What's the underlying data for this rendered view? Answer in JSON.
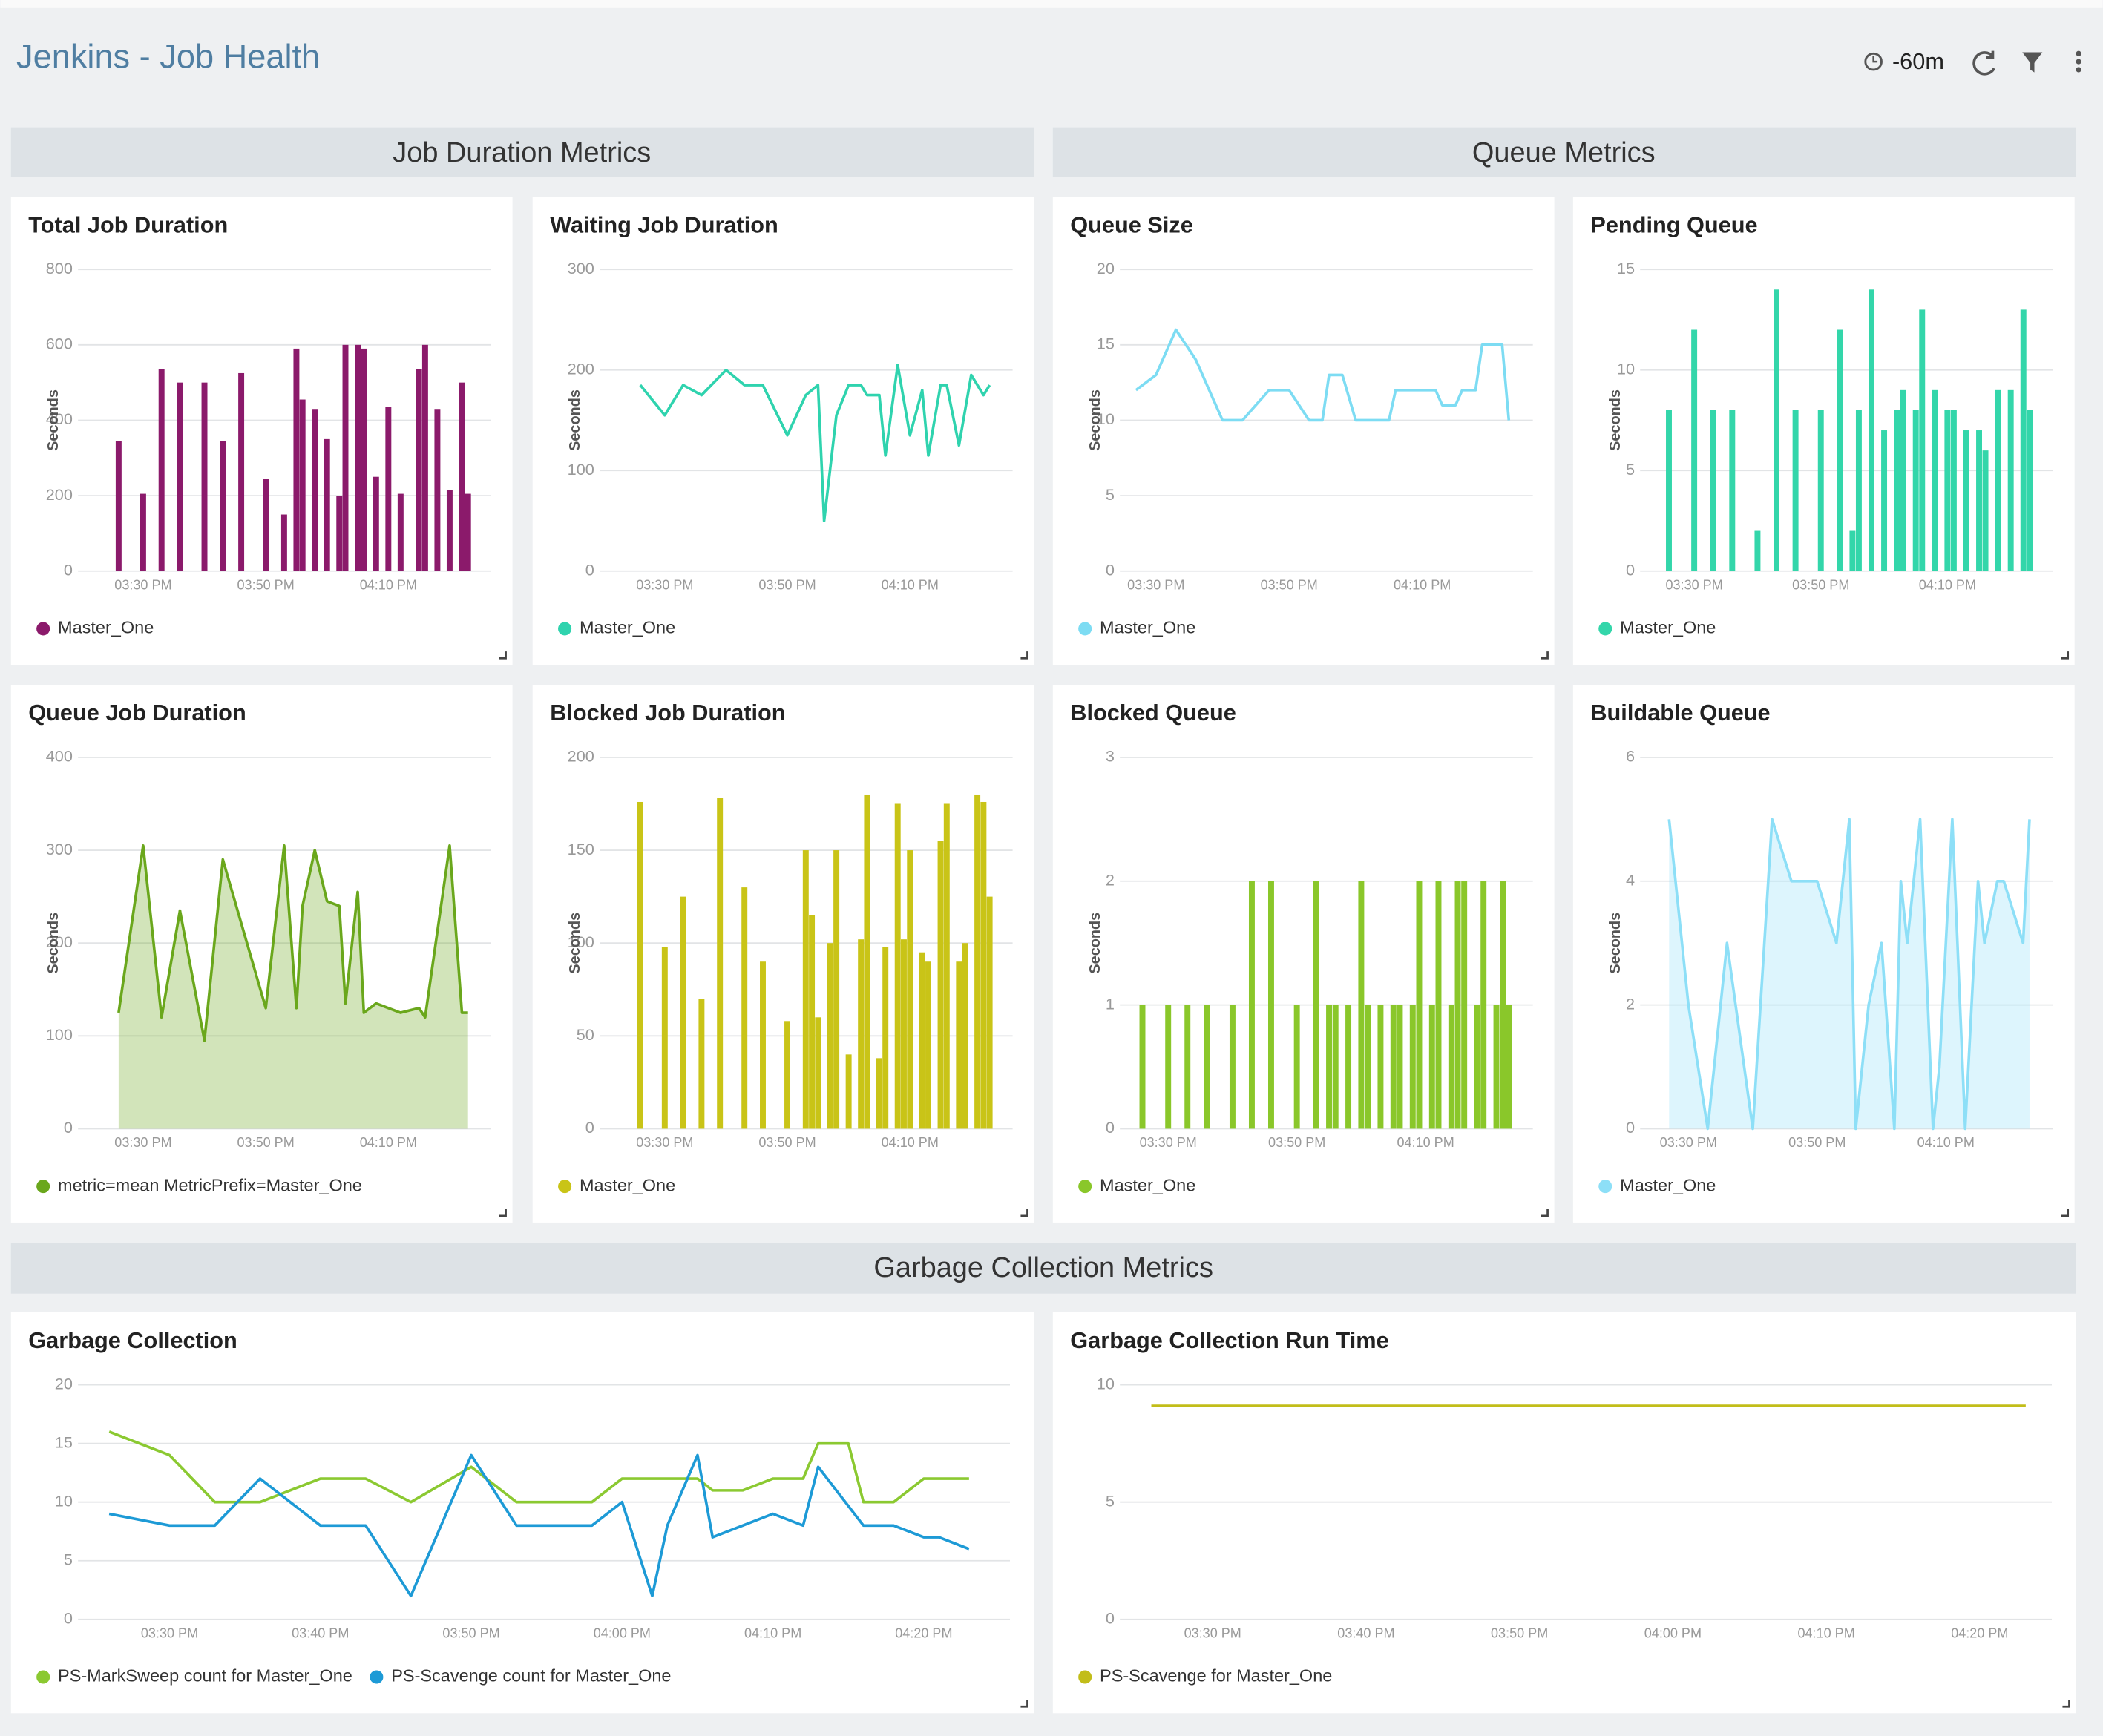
{
  "header": {
    "title": "Jenkins - Job Health",
    "time_range": "-60m"
  },
  "sections": [
    "Job Duration Metrics",
    "Queue Metrics",
    "Garbage Collection Metrics"
  ],
  "chart_data": [
    {
      "type": "bar",
      "title": "Total Job Duration",
      "y_label": "Seconds",
      "xlim": [
        "03:22 PM",
        "04:25 PM"
      ],
      "xticks": [
        "03:30 PM",
        "03:50 PM",
        "04:10 PM"
      ],
      "ylim": [
        0,
        800
      ],
      "yticks": [
        0,
        200,
        400,
        600,
        800
      ],
      "grid": true,
      "series": [
        {
          "name": "Master_One",
          "color": "#8b1a6b",
          "x": [
            "03:26 PM",
            "03:30 PM",
            "03:33 PM",
            "03:36 PM",
            "03:40 PM",
            "03:43 PM",
            "03:46 PM",
            "03:50 PM",
            "03:53 PM",
            "03:55 PM",
            "03:56 PM",
            "03:58 PM",
            "04:00 PM",
            "04:02 PM",
            "04:03 PM",
            "04:05 PM",
            "04:06 PM",
            "04:08 PM",
            "04:10 PM",
            "04:12 PM",
            "04:15 PM",
            "04:16 PM",
            "04:18 PM",
            "04:20 PM",
            "04:22 PM",
            "04:23 PM"
          ],
          "values": [
            345,
            205,
            535,
            500,
            500,
            345,
            525,
            245,
            150,
            590,
            455,
            430,
            350,
            200,
            600,
            600,
            590,
            250,
            435,
            205,
            535,
            600,
            430,
            215,
            500,
            205
          ]
        }
      ]
    },
    {
      "type": "line",
      "title": "Waiting Job Duration",
      "y_label": "Seconds",
      "xlim": [
        "03:22 PM",
        "04:25 PM"
      ],
      "xticks": [
        "03:30 PM",
        "03:50 PM",
        "04:10 PM"
      ],
      "ylim": [
        0,
        300
      ],
      "yticks": [
        0,
        100,
        200,
        300
      ],
      "grid": true,
      "series": [
        {
          "name": "Master_One",
          "color": "#2fd3ae",
          "x": [
            "03:26 PM",
            "03:30 PM",
            "03:33 PM",
            "03:36 PM",
            "03:40 PM",
            "03:43 PM",
            "03:46 PM",
            "03:50 PM",
            "03:53 PM",
            "03:55 PM",
            "03:56 PM",
            "03:58 PM",
            "04:00 PM",
            "04:02 PM",
            "04:03 PM",
            "04:05 PM",
            "04:06 PM",
            "04:08 PM",
            "04:10 PM",
            "04:12 PM",
            "04:13 PM",
            "04:15 PM",
            "04:16 PM",
            "04:18 PM",
            "04:20 PM",
            "04:22 PM",
            "04:23 PM"
          ],
          "values": [
            185,
            155,
            185,
            175,
            200,
            185,
            185,
            135,
            175,
            185,
            50,
            155,
            185,
            185,
            175,
            175,
            115,
            205,
            135,
            180,
            115,
            185,
            185,
            125,
            195,
            175,
            185
          ]
        }
      ]
    },
    {
      "type": "line",
      "title": "Queue Size",
      "y_label": "Seconds",
      "xlim": [
        "03:27 PM",
        "04:25 PM"
      ],
      "xticks": [
        "03:30 PM",
        "03:50 PM",
        "04:10 PM"
      ],
      "ylim": [
        0,
        20
      ],
      "yticks": [
        0,
        5,
        10,
        15,
        20
      ],
      "grid": true,
      "series": [
        {
          "name": "Master_One",
          "color": "#7ddcf3",
          "x": [
            "03:27 PM",
            "03:30 PM",
            "03:33 PM",
            "03:36 PM",
            "03:40 PM",
            "03:43 PM",
            "03:47 PM",
            "03:50 PM",
            "03:53 PM",
            "03:55 PM",
            "03:56 PM",
            "03:58 PM",
            "04:00 PM",
            "04:05 PM",
            "04:06 PM",
            "04:12 PM",
            "04:13 PM",
            "04:15 PM",
            "04:16 PM",
            "04:18 PM",
            "04:19 PM",
            "04:22 PM",
            "04:23 PM"
          ],
          "values": [
            12,
            13,
            16,
            14,
            10,
            10,
            12,
            12,
            10,
            10,
            13,
            13,
            10,
            10,
            12,
            12,
            11,
            11,
            12,
            12,
            15,
            15,
            10
          ]
        }
      ]
    },
    {
      "type": "bar",
      "title": "Pending Queue",
      "y_label": "Seconds",
      "xlim": [
        "03:24 PM",
        "04:25 PM"
      ],
      "xticks": [
        "03:30 PM",
        "03:50 PM",
        "04:10 PM"
      ],
      "ylim": [
        0,
        15
      ],
      "yticks": [
        0,
        5,
        10,
        15
      ],
      "grid": true,
      "series": [
        {
          "name": "Master_One",
          "color": "#33d6aa",
          "x": [
            "03:26 PM",
            "03:30 PM",
            "03:33 PM",
            "03:36 PM",
            "03:40 PM",
            "03:43 PM",
            "03:46 PM",
            "03:50 PM",
            "03:53 PM",
            "03:55 PM",
            "03:56 PM",
            "03:58 PM",
            "04:00 PM",
            "04:02 PM",
            "04:03 PM",
            "04:05 PM",
            "04:06 PM",
            "04:08 PM",
            "04:10 PM",
            "04:11 PM",
            "04:13 PM",
            "04:15 PM",
            "04:16 PM",
            "04:18 PM",
            "04:20 PM",
            "04:22 PM",
            "04:23 PM"
          ],
          "values": [
            8,
            12,
            8,
            8,
            2,
            14,
            8,
            8,
            12,
            2,
            8,
            14,
            7,
            8,
            9,
            8,
            13,
            9,
            8,
            8,
            7,
            7,
            6,
            9,
            9,
            13,
            8
          ]
        }
      ]
    },
    {
      "type": "area",
      "title": "Queue Job Duration",
      "y_label": "Seconds",
      "xlim": [
        "03:22 PM",
        "04:25 PM"
      ],
      "xticks": [
        "03:30 PM",
        "03:50 PM",
        "04:10 PM"
      ],
      "ylim": [
        0,
        400
      ],
      "yticks": [
        0,
        100,
        200,
        300,
        400
      ],
      "grid": true,
      "series": [
        {
          "name": "metric=mean MetricPrefix=Master_One",
          "color": "#6aa71c",
          "x": [
            "03:26 PM",
            "03:30 PM",
            "03:33 PM",
            "03:36 PM",
            "03:40 PM",
            "03:43 PM",
            "03:50 PM",
            "03:53 PM",
            "03:55 PM",
            "03:56 PM",
            "03:58 PM",
            "04:00 PM",
            "04:02 PM",
            "04:03 PM",
            "04:05 PM",
            "04:06 PM",
            "04:08 PM",
            "04:10 PM",
            "04:12 PM",
            "04:15 PM",
            "04:16 PM",
            "04:20 PM",
            "04:22 PM",
            "04:23 PM"
          ],
          "values": [
            125,
            305,
            120,
            235,
            95,
            290,
            130,
            305,
            130,
            240,
            300,
            245,
            240,
            135,
            255,
            125,
            135,
            130,
            125,
            130,
            120,
            305,
            125,
            125
          ]
        }
      ]
    },
    {
      "type": "bar",
      "title": "Blocked Job Duration",
      "y_label": "Seconds",
      "xlim": [
        "03:22 PM",
        "04:25 PM"
      ],
      "xticks": [
        "03:30 PM",
        "03:50 PM",
        "04:10 PM"
      ],
      "ylim": [
        0,
        200
      ],
      "yticks": [
        0,
        50,
        100,
        150,
        200
      ],
      "grid": true,
      "series": [
        {
          "name": "Master_One",
          "color": "#c9c417",
          "x": [
            "03:26 PM",
            "03:30 PM",
            "03:33 PM",
            "03:36 PM",
            "03:39 PM",
            "03:43 PM",
            "03:46 PM",
            "03:50 PM",
            "03:53 PM",
            "03:54 PM",
            "03:55 PM",
            "03:57 PM",
            "03:58 PM",
            "04:00 PM",
            "04:02 PM",
            "04:03 PM",
            "04:05 PM",
            "04:06 PM",
            "04:08 PM",
            "04:09 PM",
            "04:10 PM",
            "04:12 PM",
            "04:13 PM",
            "04:15 PM",
            "04:16 PM",
            "04:18 PM",
            "04:19 PM",
            "04:21 PM",
            "04:22 PM",
            "04:23 PM"
          ],
          "values": [
            176,
            98,
            125,
            70,
            178,
            130,
            90,
            58,
            150,
            115,
            60,
            100,
            150,
            40,
            102,
            180,
            38,
            98,
            175,
            102,
            150,
            95,
            90,
            155,
            175,
            90,
            100,
            180,
            176,
            125
          ]
        }
      ]
    },
    {
      "type": "bar",
      "title": "Blocked Queue",
      "y_label": "Seconds",
      "xlim": [
        "03:25 PM",
        "04:25 PM"
      ],
      "xticks": [
        "03:30 PM",
        "03:50 PM",
        "04:10 PM"
      ],
      "ylim": [
        0,
        3
      ],
      "yticks": [
        0,
        1,
        2,
        3
      ],
      "grid": true,
      "series": [
        {
          "name": "Master_One",
          "color": "#8ac72a",
          "x": [
            "03:26 PM",
            "03:30 PM",
            "03:33 PM",
            "03:36 PM",
            "03:40 PM",
            "03:43 PM",
            "03:46 PM",
            "03:50 PM",
            "03:53 PM",
            "03:55 PM",
            "03:56 PM",
            "03:58 PM",
            "04:00 PM",
            "04:01 PM",
            "04:03 PM",
            "04:05 PM",
            "04:06 PM",
            "04:08 PM",
            "04:09 PM",
            "04:11 PM",
            "04:12 PM",
            "04:14 PM",
            "04:15 PM",
            "04:16 PM",
            "04:18 PM",
            "04:19 PM",
            "04:21 PM",
            "04:22 PM",
            "04:23 PM"
          ],
          "values": [
            1,
            1,
            1,
            1,
            1,
            2,
            2,
            1,
            2,
            1,
            1,
            1,
            2,
            1,
            1,
            1,
            1,
            1,
            2,
            1,
            2,
            1,
            2,
            2,
            1,
            2,
            1,
            2,
            1
          ]
        }
      ]
    },
    {
      "type": "area",
      "title": "Buildable Queue",
      "y_label": "Seconds",
      "xlim": [
        "03:25 PM",
        "04:25 PM"
      ],
      "xticks": [
        "03:30 PM",
        "03:50 PM",
        "04:10 PM"
      ],
      "ylim": [
        0,
        6
      ],
      "yticks": [
        0,
        2,
        4,
        6
      ],
      "grid": true,
      "series": [
        {
          "name": "Master_One",
          "color": "#8ddff7",
          "x": [
            "03:27 PM",
            "03:30 PM",
            "03:33 PM",
            "03:36 PM",
            "03:40 PM",
            "03:43 PM",
            "03:46 PM",
            "03:50 PM",
            "03:53 PM",
            "03:55 PM",
            "03:56 PM",
            "03:58 PM",
            "04:00 PM",
            "04:02 PM",
            "04:03 PM",
            "04:04 PM",
            "04:06 PM",
            "04:08 PM",
            "04:09 PM",
            "04:11 PM",
            "04:13 PM",
            "04:15 PM",
            "04:16 PM",
            "04:18 PM",
            "04:19 PM",
            "04:22 PM",
            "04:23 PM"
          ],
          "values": [
            5,
            2,
            0,
            3,
            0,
            5,
            4,
            4,
            3,
            5,
            0,
            2,
            3,
            0,
            4,
            3,
            5,
            0,
            1,
            5,
            0,
            4,
            3,
            4,
            4,
            3,
            5
          ]
        }
      ]
    },
    {
      "type": "line",
      "title": "Garbage Collection",
      "xlim": [
        "03:25 PM",
        "04:25 PM"
      ],
      "xticks": [
        "03:30 PM",
        "03:40 PM",
        "03:50 PM",
        "04:00 PM",
        "04:10 PM",
        "04:20 PM"
      ],
      "ylim": [
        0,
        20
      ],
      "yticks": [
        0,
        5,
        10,
        15,
        20
      ],
      "grid": true,
      "series": [
        {
          "name": "PS-MarkSweep count for Master_One",
          "color": "#8bc931",
          "x": [
            "03:26 PM",
            "03:30 PM",
            "03:33 PM",
            "03:36 PM",
            "03:40 PM",
            "03:43 PM",
            "03:46 PM",
            "03:50 PM",
            "03:53 PM",
            "03:58 PM",
            "04:00 PM",
            "04:05 PM",
            "04:06 PM",
            "04:08 PM",
            "04:10 PM",
            "04:12 PM",
            "04:13 PM",
            "04:15 PM",
            "04:16 PM",
            "04:18 PM",
            "04:20 PM",
            "04:23 PM"
          ],
          "values": [
            16,
            14,
            10,
            10,
            12,
            12,
            10,
            13,
            10,
            10,
            12,
            12,
            11,
            11,
            12,
            12,
            15,
            15,
            10,
            10,
            12,
            12
          ]
        },
        {
          "name": "PS-Scavenge count for Master_One",
          "color": "#1d9ad6",
          "x": [
            "03:26 PM",
            "03:30 PM",
            "03:33 PM",
            "03:36 PM",
            "03:40 PM",
            "03:43 PM",
            "03:46 PM",
            "03:50 PM",
            "03:53 PM",
            "03:58 PM",
            "04:00 PM",
            "04:02 PM",
            "04:03 PM",
            "04:05 PM",
            "04:06 PM",
            "04:08 PM",
            "04:10 PM",
            "04:12 PM",
            "04:13 PM",
            "04:16 PM",
            "04:18 PM",
            "04:20 PM",
            "04:21 PM",
            "04:23 PM"
          ],
          "values": [
            9,
            8,
            8,
            12,
            8,
            8,
            2,
            14,
            8,
            8,
            10,
            2,
            8,
            14,
            7,
            8,
            9,
            8,
            13,
            8,
            8,
            7,
            7,
            6
          ]
        }
      ]
    },
    {
      "type": "line",
      "title": "Garbage Collection Run Time",
      "xlim": [
        "03:25 PM",
        "04:24 PM"
      ],
      "xticks": [
        "03:30 PM",
        "03:40 PM",
        "03:50 PM",
        "04:00 PM",
        "04:10 PM",
        "04:20 PM"
      ],
      "ylim": [
        0,
        10
      ],
      "yticks": [
        0,
        5,
        10
      ],
      "grid": true,
      "series": [
        {
          "name": "PS-Scavenge for Master_One",
          "color": "#c2bd19",
          "x": [
            "03:26 PM",
            "04:23 PM"
          ],
          "values": [
            9.1,
            9.1
          ]
        }
      ]
    }
  ]
}
